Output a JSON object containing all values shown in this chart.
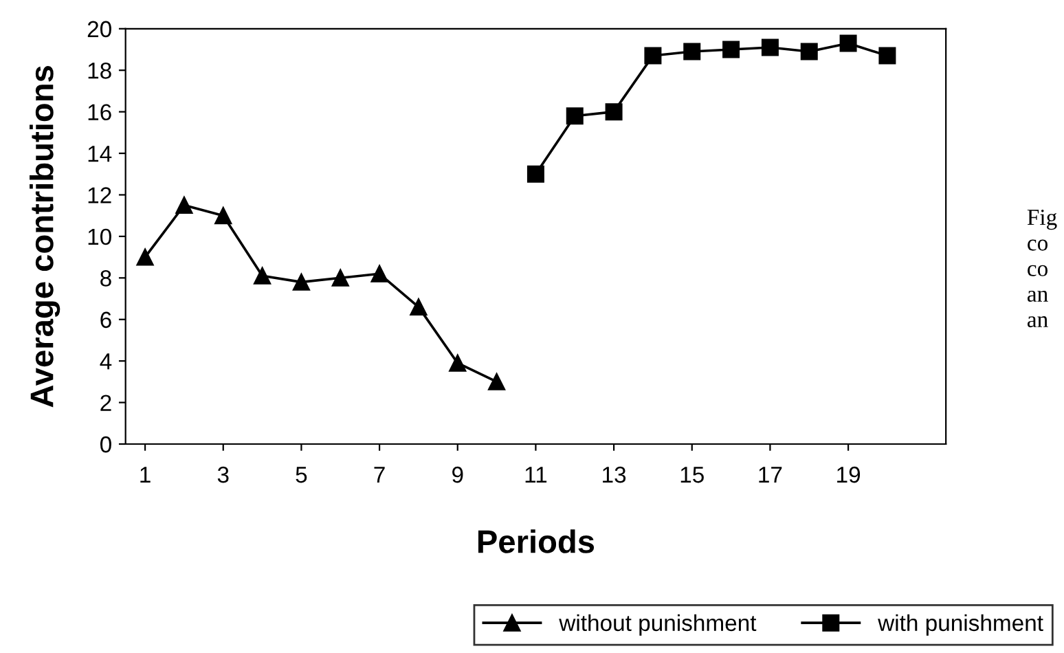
{
  "chart_data": {
    "type": "line",
    "xlabel": "Periods",
    "ylabel": "Average contributions",
    "series": [
      {
        "name": "without punishment",
        "color": "#000000",
        "marker": "triangle",
        "x": [
          1,
          2,
          3,
          4,
          5,
          6,
          7,
          8,
          9,
          10
        ],
        "values": [
          9.0,
          11.5,
          11.0,
          8.1,
          7.8,
          8.0,
          8.2,
          6.6,
          3.9,
          3.0
        ]
      },
      {
        "name": "with punishment",
        "color": "#000000",
        "marker": "square",
        "x": [
          11,
          12,
          13,
          14,
          15,
          16,
          17,
          18,
          19,
          20
        ],
        "values": [
          13.0,
          15.8,
          16.0,
          18.7,
          18.9,
          19.0,
          19.1,
          18.9,
          19.3,
          18.7
        ]
      }
    ],
    "xlim": [
      0.5,
      21.5
    ],
    "xticks": [
      1,
      3,
      5,
      7,
      9,
      11,
      13,
      15,
      17,
      19
    ],
    "ylim": [
      0,
      20
    ],
    "yticks": [
      0,
      2,
      4,
      6,
      8,
      10,
      12,
      14,
      16,
      18,
      20
    ],
    "grid": false,
    "legend": "bottom",
    "line_style": "solid",
    "annotations": [
      "Fig\nco\nco\nan\nan"
    ]
  }
}
